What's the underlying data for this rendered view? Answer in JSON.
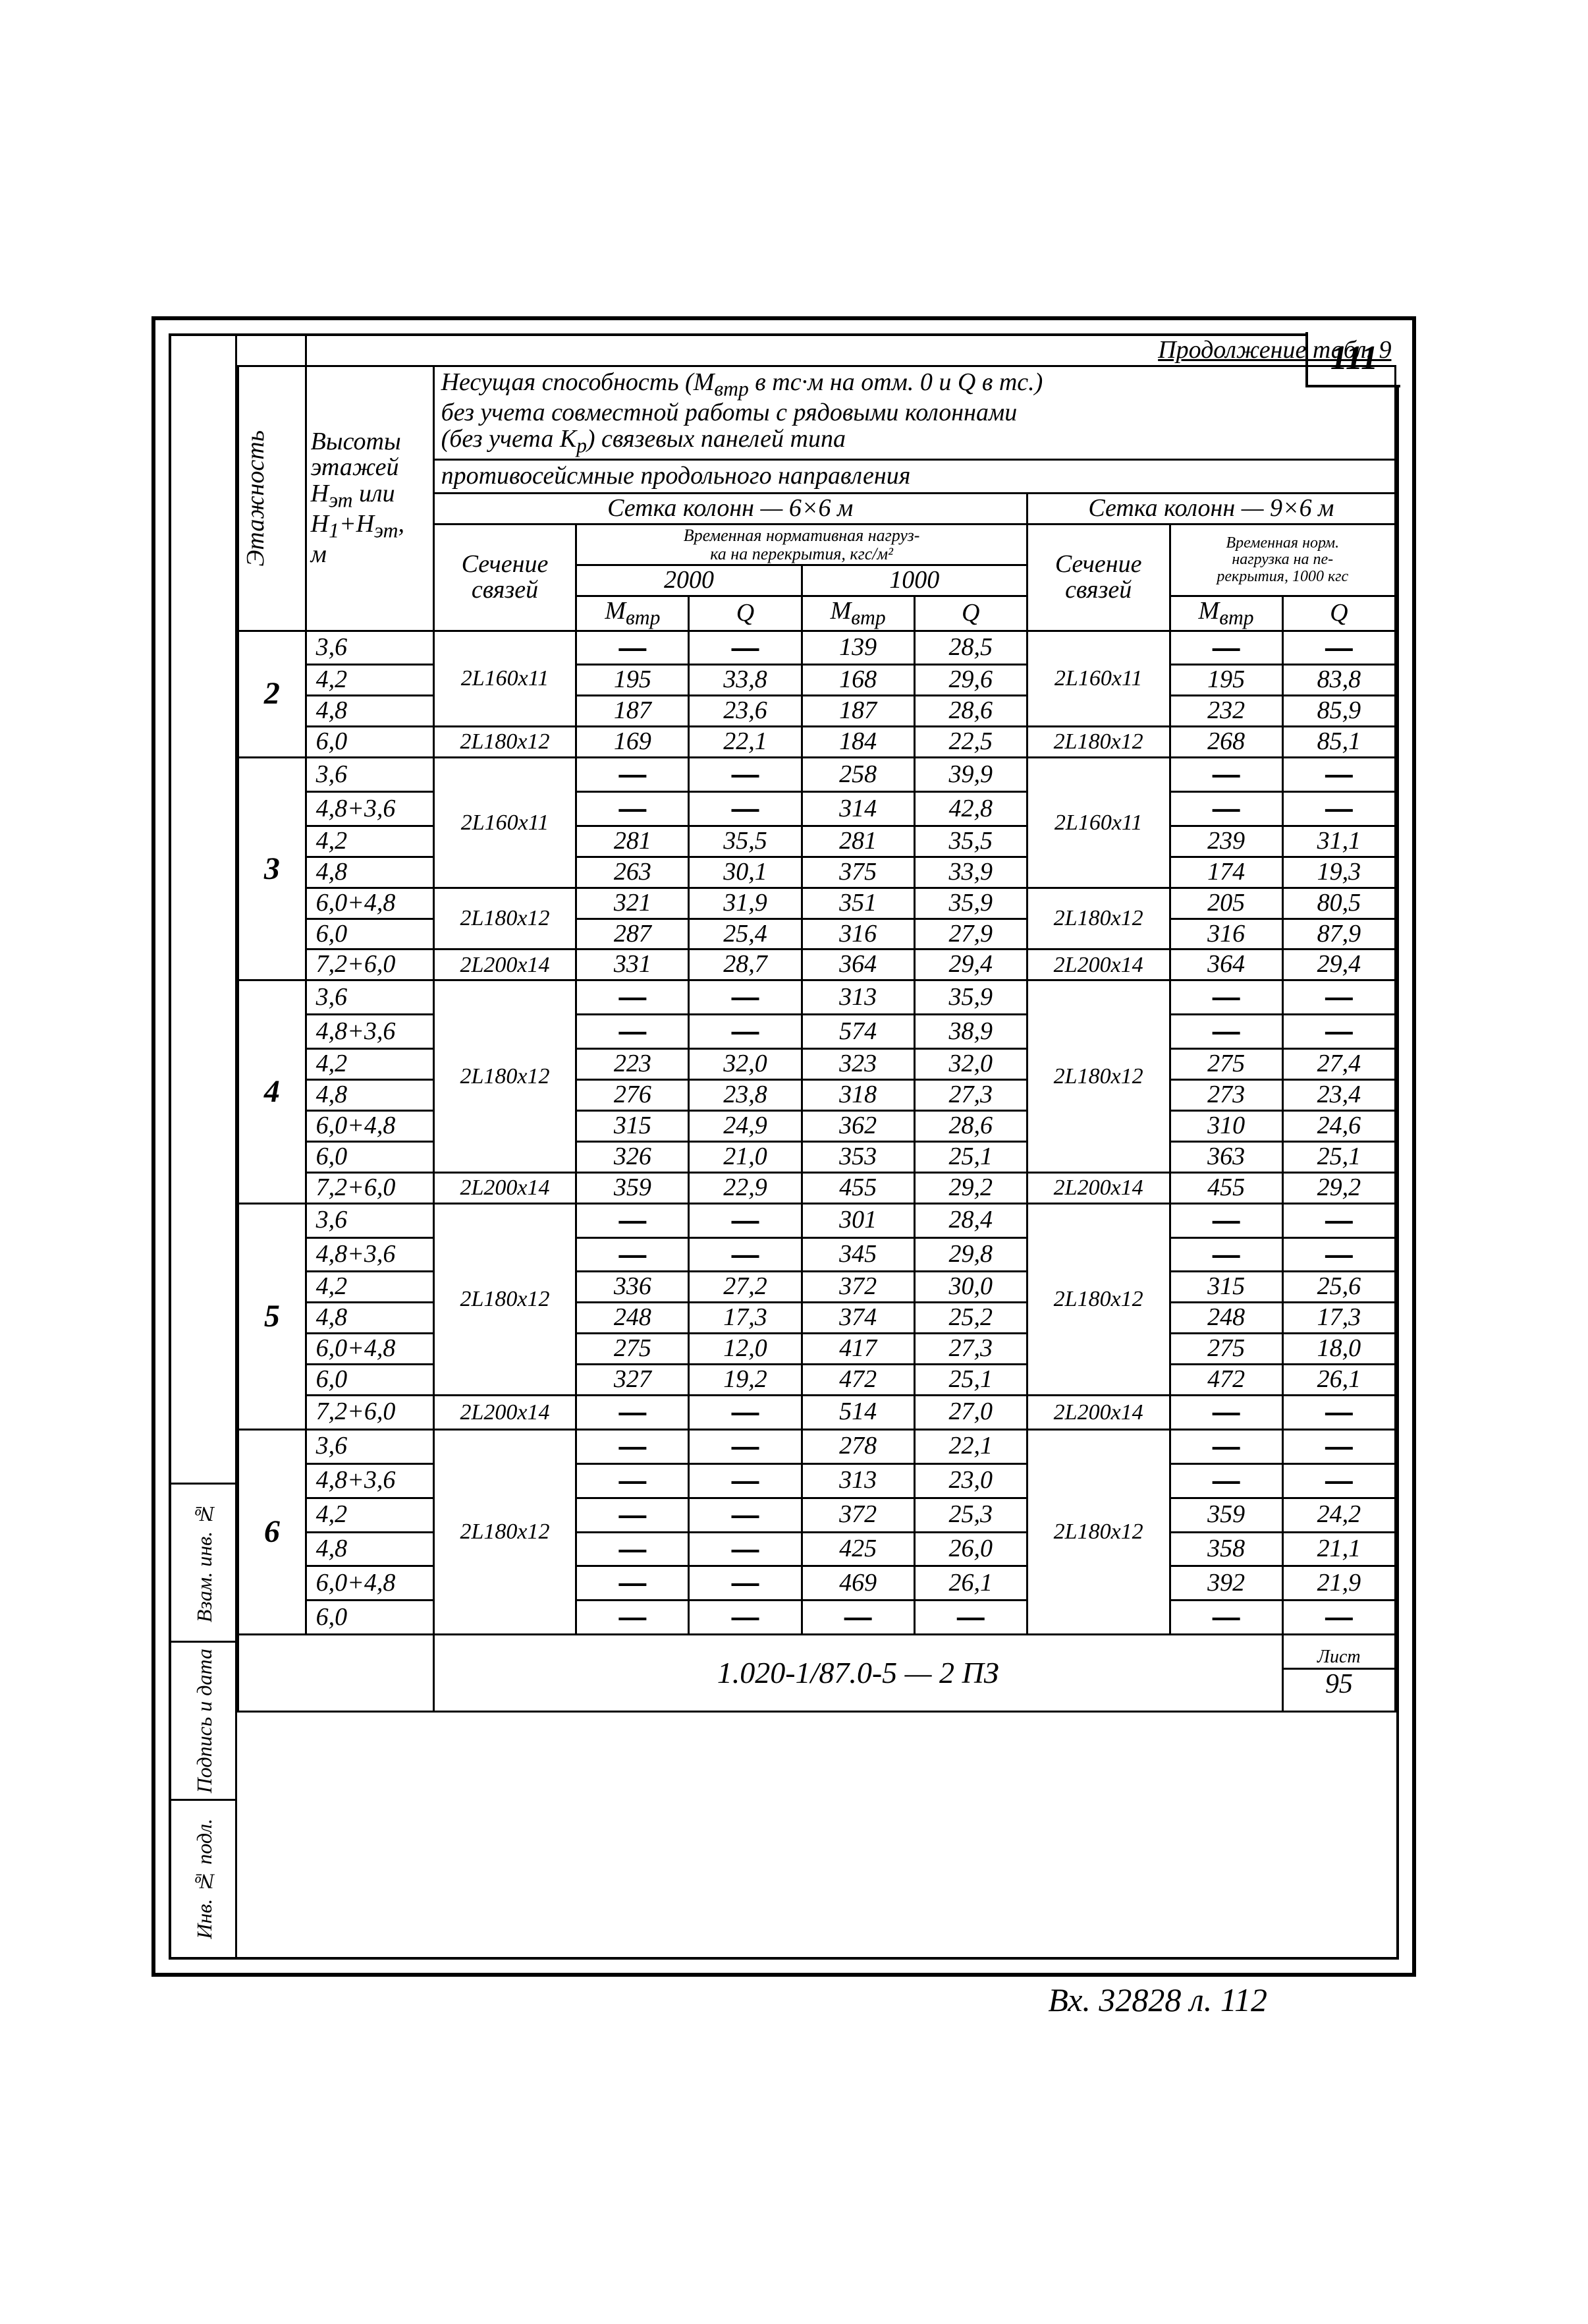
{
  "page_number": "111",
  "continuation": "Продолжение табл. 9",
  "header": {
    "line1": "Несущая способность (М<sub>втр</sub> в тс·м на отм. 0 и Q в тс.)",
    "line2": "без учета совместной работы с рядовыми колоннами",
    "line3": "(без учета К<sub>р</sub>) связевых панелей типа",
    "line4": "противосейсмные продольного направления",
    "grid6x6": "Сетка колонн — 6×6 м",
    "grid9x6": "Сетка колонн — 9×6 м",
    "sech": "Сечение связей",
    "load_hdr": "Временная нормативная нагруз-\nка на перекрытия, кгс/м²",
    "load_hdr2": "Временная норм.\nнагрузка на пе-\nрекрытия, 1000 кгс",
    "c2000": "2000",
    "c1000": "1000",
    "Mvtr": "М<sub>втр</sub>",
    "Q": "Q",
    "col_etazh": "Этажность",
    "col_vys": "Высоты\nэтажей\nН<sub>эт</sub> или\nН<sub>1</sub>+Н<sub>эт</sub>,\nм"
  },
  "side_labels": [
    "Инв. № подл.",
    "Подпись и дата",
    "Взам. инв. №"
  ],
  "footer": {
    "doc": "1.020-1/87.0-5 — 2 ПЗ",
    "sheet_label": "Лист",
    "sheet": "95"
  },
  "archive": "Вх. 32828 л. 112",
  "rows": [
    {
      "et": "2",
      "h": "3,6",
      "s1": "2L160x11",
      "m1": "—",
      "q1": "—",
      "m2": "139",
      "q2": "28,5",
      "s2": "2L160x11",
      "m3": "—",
      "q3": "—"
    },
    {
      "et": "",
      "h": "4,2",
      "s1": "",
      "m1": "195",
      "q1": "33,8",
      "m2": "168",
      "q2": "29,6",
      "s2": "",
      "m3": "195",
      "q3": "83,8"
    },
    {
      "et": "",
      "h": "4,8",
      "s1": "",
      "m1": "187",
      "q1": "23,6",
      "m2": "187",
      "q2": "28,6",
      "s2": "",
      "m3": "232",
      "q3": "85,9"
    },
    {
      "et": "",
      "h": "6,0",
      "s1": "2L180x12",
      "m1": "169",
      "q1": "22,1",
      "m2": "184",
      "q2": "22,5",
      "s2": "2L180x12",
      "m3": "268",
      "q3": "85,1"
    },
    {
      "et": "3",
      "h": "3,6",
      "s1": "2L160x11",
      "m1": "—",
      "q1": "—",
      "m2": "258",
      "q2": "39,9",
      "s2": "2L160x11",
      "m3": "—",
      "q3": "—"
    },
    {
      "et": "",
      "h": "4,8+3,6",
      "s1": "",
      "m1": "—",
      "q1": "—",
      "m2": "314",
      "q2": "42,8",
      "s2": "",
      "m3": "—",
      "q3": "—"
    },
    {
      "et": "",
      "h": "4,2",
      "s1": "",
      "m1": "281",
      "q1": "35,5",
      "m2": "281",
      "q2": "35,5",
      "s2": "",
      "m3": "239",
      "q3": "31,1"
    },
    {
      "et": "",
      "h": "4,8",
      "s1": "",
      "m1": "263",
      "q1": "30,1",
      "m2": "375",
      "q2": "33,9",
      "s2": "",
      "m3": "174",
      "q3": "19,3"
    },
    {
      "et": "",
      "h": "6,0+4,8",
      "s1": "2L180x12",
      "m1": "321",
      "q1": "31,9",
      "m2": "351",
      "q2": "35,9",
      "s2": "2L180x12",
      "m3": "205",
      "q3": "80,5"
    },
    {
      "et": "",
      "h": "6,0",
      "s1": "",
      "m1": "287",
      "q1": "25,4",
      "m2": "316",
      "q2": "27,9",
      "s2": "",
      "m3": "316",
      "q3": "87,9"
    },
    {
      "et": "",
      "h": "7,2+6,0",
      "s1": "2L200x14",
      "m1": "331",
      "q1": "28,7",
      "m2": "364",
      "q2": "29,4",
      "s2": "2L200x14",
      "m3": "364",
      "q3": "29,4"
    },
    {
      "et": "4",
      "h": "3,6",
      "s1": "2L180x12",
      "m1": "—",
      "q1": "—",
      "m2": "313",
      "q2": "35,9",
      "s2": "2L180x12",
      "m3": "—",
      "q3": "—"
    },
    {
      "et": "",
      "h": "4,8+3,6",
      "s1": "",
      "m1": "—",
      "q1": "—",
      "m2": "574",
      "q2": "38,9",
      "s2": "",
      "m3": "—",
      "q3": "—"
    },
    {
      "et": "",
      "h": "4,2",
      "s1": "",
      "m1": "223",
      "q1": "32,0",
      "m2": "323",
      "q2": "32,0",
      "s2": "",
      "m3": "275",
      "q3": "27,4"
    },
    {
      "et": "",
      "h": "4,8",
      "s1": "",
      "m1": "276",
      "q1": "23,8",
      "m2": "318",
      "q2": "27,3",
      "s2": "",
      "m3": "273",
      "q3": "23,4"
    },
    {
      "et": "",
      "h": "6,0+4,8",
      "s1": "",
      "m1": "315",
      "q1": "24,9",
      "m2": "362",
      "q2": "28,6",
      "s2": "",
      "m3": "310",
      "q3": "24,6"
    },
    {
      "et": "",
      "h": "6,0",
      "s1": "",
      "m1": "326",
      "q1": "21,0",
      "m2": "353",
      "q2": "25,1",
      "s2": "",
      "m3": "363",
      "q3": "25,1"
    },
    {
      "et": "",
      "h": "7,2+6,0",
      "s1": "2L200x14",
      "m1": "359",
      "q1": "22,9",
      "m2": "455",
      "q2": "29,2",
      "s2": "2L200x14",
      "m3": "455",
      "q3": "29,2"
    },
    {
      "et": "5",
      "h": "3,6",
      "s1": "2L180x12",
      "m1": "—",
      "q1": "—",
      "m2": "301",
      "q2": "28,4",
      "s2": "2L180x12",
      "m3": "—",
      "q3": "—"
    },
    {
      "et": "",
      "h": "4,8+3,6",
      "s1": "",
      "m1": "—",
      "q1": "—",
      "m2": "345",
      "q2": "29,8",
      "s2": "",
      "m3": "—",
      "q3": "—"
    },
    {
      "et": "",
      "h": "4,2",
      "s1": "",
      "m1": "336",
      "q1": "27,2",
      "m2": "372",
      "q2": "30,0",
      "s2": "",
      "m3": "315",
      "q3": "25,6"
    },
    {
      "et": "",
      "h": "4,8",
      "s1": "",
      "m1": "248",
      "q1": "17,3",
      "m2": "374",
      "q2": "25,2",
      "s2": "",
      "m3": "248",
      "q3": "17,3"
    },
    {
      "et": "",
      "h": "6,0+4,8",
      "s1": "",
      "m1": "275",
      "q1": "12,0",
      "m2": "417",
      "q2": "27,3",
      "s2": "",
      "m3": "275",
      "q3": "18,0"
    },
    {
      "et": "",
      "h": "6,0",
      "s1": "",
      "m1": "327",
      "q1": "19,2",
      "m2": "472",
      "q2": "25,1",
      "s2": "",
      "m3": "472",
      "q3": "26,1"
    },
    {
      "et": "",
      "h": "7,2+6,0",
      "s1": "2L200x14",
      "m1": "—",
      "q1": "—",
      "m2": "514",
      "q2": "27,0",
      "s2": "2L200x14",
      "m3": "—",
      "q3": "—"
    },
    {
      "et": "6",
      "h": "3,6",
      "s1": "2L180x12",
      "m1": "—",
      "q1": "—",
      "m2": "278",
      "q2": "22,1",
      "s2": "2L180x12",
      "m3": "—",
      "q3": "—"
    },
    {
      "et": "",
      "h": "4,8+3,6",
      "s1": "",
      "m1": "—",
      "q1": "—",
      "m2": "313",
      "q2": "23,0",
      "s2": "",
      "m3": "—",
      "q3": "—"
    },
    {
      "et": "",
      "h": "4,2",
      "s1": "",
      "m1": "—",
      "q1": "—",
      "m2": "372",
      "q2": "25,3",
      "s2": "",
      "m3": "359",
      "q3": "24,2"
    },
    {
      "et": "",
      "h": "4,8",
      "s1": "",
      "m1": "—",
      "q1": "—",
      "m2": "425",
      "q2": "26,0",
      "s2": "",
      "m3": "358",
      "q3": "21,1"
    },
    {
      "et": "",
      "h": "6,0+4,8",
      "s1": "",
      "m1": "—",
      "q1": "—",
      "m2": "469",
      "q2": "26,1",
      "s2": "",
      "m3": "392",
      "q3": "21,9"
    },
    {
      "et": "",
      "h": "6,0",
      "s1": "",
      "m1": "—",
      "q1": "—",
      "m2": "—",
      "q2": "—",
      "s2": "",
      "m3": "—",
      "q3": "—"
    }
  ],
  "section_spans": [
    {
      "start": 0,
      "s1_span": 3
    },
    {
      "start": 3,
      "s1_span": 1
    },
    {
      "start": 4,
      "s1_span": 4
    },
    {
      "start": 8,
      "s1_span": 2
    },
    {
      "start": 10,
      "s1_span": 1
    },
    {
      "start": 11,
      "s1_span": 6
    },
    {
      "start": 17,
      "s1_span": 1
    },
    {
      "start": 18,
      "s1_span": 6
    },
    {
      "start": 24,
      "s1_span": 1
    },
    {
      "start": 25,
      "s1_span": 6
    }
  ],
  "et_spans": [
    {
      "start": 0,
      "span": 4,
      "label": "2"
    },
    {
      "start": 4,
      "span": 7,
      "label": "3"
    },
    {
      "start": 11,
      "span": 7,
      "label": "4"
    },
    {
      "start": 18,
      "span": 7,
      "label": "5"
    },
    {
      "start": 25,
      "span": 6,
      "label": "6"
    }
  ]
}
